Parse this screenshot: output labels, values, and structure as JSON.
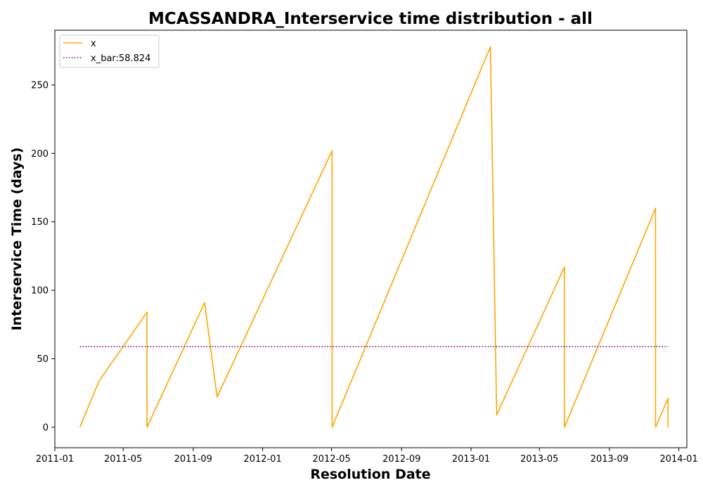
{
  "chart_data": {
    "type": "line",
    "title": "MCASSANDRA_Interservice time distribution - all",
    "xlabel": "Resolution Date",
    "ylabel": "Interservice Time (days)",
    "xlim": [
      "2011-01-01",
      "2014-01-15"
    ],
    "ylim": [
      -15,
      290
    ],
    "x_ticks": [
      "2011-01",
      "2011-05",
      "2011-09",
      "2012-01",
      "2012-05",
      "2012-09",
      "2013-01",
      "2013-05",
      "2013-09",
      "2014-01"
    ],
    "y_ticks": [
      0,
      50,
      100,
      150,
      200,
      250
    ],
    "grid": false,
    "legend_position": "upper left",
    "series": [
      {
        "name": "x",
        "color": "#ffa500",
        "style": "solid",
        "points": [
          {
            "x": "2011-02-14",
            "y": 0
          },
          {
            "x": "2011-03-20",
            "y": 34
          },
          {
            "x": "2011-06-12",
            "y": 84
          },
          {
            "x": "2011-06-12",
            "y": 0
          },
          {
            "x": "2011-09-21",
            "y": 91
          },
          {
            "x": "2011-10-13",
            "y": 22
          },
          {
            "x": "2012-05-02",
            "y": 202
          },
          {
            "x": "2012-05-02",
            "y": 0
          },
          {
            "x": "2013-02-04",
            "y": 278
          },
          {
            "x": "2013-02-15",
            "y": 9
          },
          {
            "x": "2013-06-14",
            "y": 117
          },
          {
            "x": "2013-06-14",
            "y": 0
          },
          {
            "x": "2013-11-21",
            "y": 160
          },
          {
            "x": "2013-11-21",
            "y": 0
          },
          {
            "x": "2013-12-13",
            "y": 21
          },
          {
            "x": "2013-12-13",
            "y": 0
          }
        ]
      },
      {
        "name": "x_bar:58.824",
        "color": "#800080",
        "style": "dotted",
        "points": [
          {
            "x": "2011-02-14",
            "y": 58.824
          },
          {
            "x": "2013-12-13",
            "y": 58.824
          }
        ]
      }
    ]
  }
}
